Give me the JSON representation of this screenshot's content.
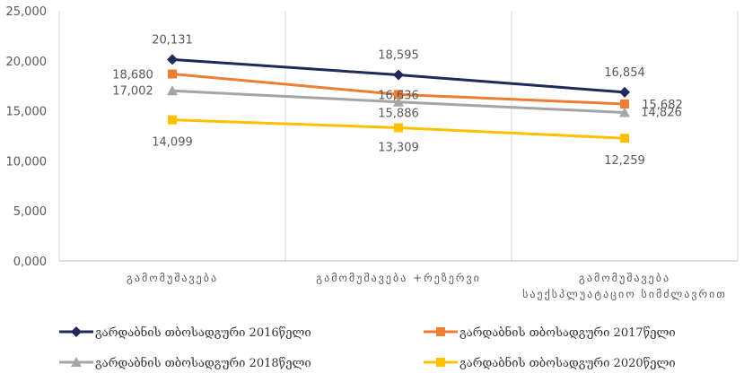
{
  "chart_data": {
    "type": "line",
    "categories": [
      [
        "გამომუშავება"
      ],
      [
        "გამომუშავება +რეზერვი"
      ],
      [
        "გამომუშავება",
        "საექსპლუატაციო სიმძლავრით"
      ]
    ],
    "y_ticks": [
      "0,000",
      "5,000",
      "10,000",
      "15,000",
      "20,000",
      "25,000"
    ],
    "ylim": [
      0,
      25000
    ],
    "grid": "vertical",
    "legend_position": "bottom",
    "series": [
      {
        "name": "გარდაბნის თბოსადგური 2016წელი",
        "values": [
          20131,
          18595,
          16854
        ],
        "labels": [
          "20,131",
          "18,595",
          "16,854"
        ],
        "color": "#1f2a5a",
        "marker": "diamond"
      },
      {
        "name": "გარდაბნის თბოსადგური 2017წელი",
        "values": [
          18680,
          16636,
          15682
        ],
        "labels": [
          "18,680",
          "16,636",
          "15,682"
        ],
        "color": "#ed7d31",
        "marker": "square"
      },
      {
        "name": "გარდაბნის თბოსადგური 2018წელი",
        "values": [
          17002,
          15886,
          14826
        ],
        "labels": [
          "17,002",
          "15,886",
          "14,826"
        ],
        "color": "#a5a5a5",
        "marker": "triangle"
      },
      {
        "name": "გარდაბნის თბოსადგური 2020წელი",
        "values": [
          14099,
          13309,
          12259
        ],
        "labels": [
          "14,099",
          "13,309",
          "12,259"
        ],
        "color": "#ffc000",
        "marker": "square"
      }
    ]
  }
}
